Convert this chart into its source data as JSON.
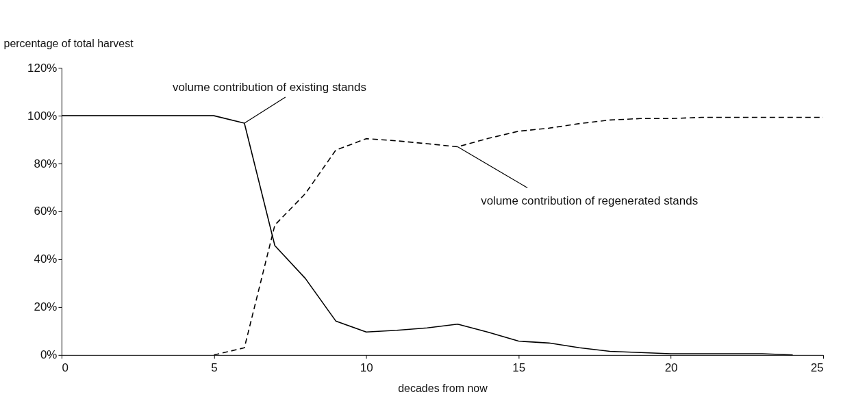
{
  "chart_data": {
    "type": "line",
    "xlabel": "decades from now",
    "ylabel": "percentage of total harvest",
    "series": [
      {
        "name": null,
        "color": "#000000",
        "line_style": "solid",
        "x": [
          0,
          5,
          6,
          7,
          8,
          9,
          10,
          11,
          12,
          13,
          14,
          15,
          16,
          17,
          18,
          19,
          20,
          21,
          22,
          23,
          24
        ],
        "values": [
          100,
          100,
          96.9,
          45.7,
          32,
          14.2,
          9.6,
          10.3,
          11.3,
          12.9,
          9.5,
          5.8,
          5,
          3,
          1.5,
          1,
          0.5,
          0.5,
          0.5,
          0.5,
          0
        ]
      },
      {
        "name": null,
        "color": "#000000",
        "line_style": "dashed",
        "x": [
          5,
          6,
          7,
          8,
          9,
          10,
          11,
          12,
          13,
          14,
          15,
          16,
          17,
          18,
          19,
          20,
          21,
          22,
          23,
          24,
          25
        ],
        "values": [
          0,
          3,
          54.3,
          67.4,
          85.6,
          90.4,
          89.5,
          88.3,
          87,
          90.5,
          93.5,
          94.8,
          96.7,
          98.2,
          98.8,
          98.8,
          99.3,
          99.3,
          99.3,
          99.3,
          99.3
        ]
      }
    ],
    "annotations": [
      {
        "text": "volume contribution of existing stands",
        "x": 6,
        "y": 96.9
      },
      {
        "text": "volume contribution of regenerated stands",
        "x": 13,
        "y": 87
      }
    ],
    "xlim": [
      0,
      25
    ],
    "xticks": [
      0,
      5,
      10,
      15,
      20,
      25
    ],
    "ylim": [
      0,
      120
    ],
    "yticks": [
      {
        "value": 0,
        "label": "0%"
      },
      {
        "value": 20,
        "label": "20%"
      },
      {
        "value": 40,
        "label": "40%"
      },
      {
        "value": 60,
        "label": "60%"
      },
      {
        "value": 80,
        "label": "80%"
      },
      {
        "value": 100,
        "label": "100%"
      },
      {
        "value": 120,
        "label": "120%"
      }
    ],
    "grid": false,
    "marker": "none"
  }
}
